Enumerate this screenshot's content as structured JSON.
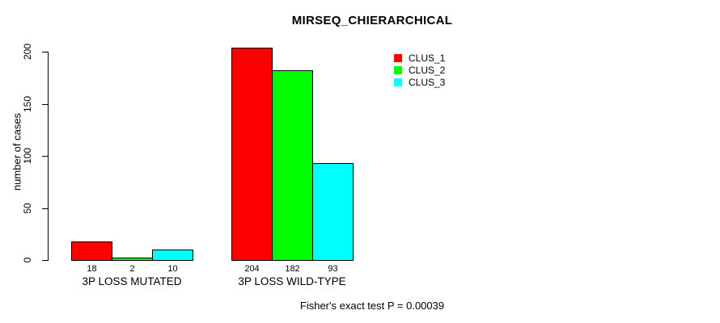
{
  "title": "MIRSEQ_CHIERARCHICAL",
  "y_axis": {
    "label": "number of cases"
  },
  "footer": "Fisher's exact test P = 0.00039",
  "legend": {
    "items": [
      {
        "label": "CLUS_1",
        "color": "#FF0000"
      },
      {
        "label": "CLUS_2",
        "color": "#00FF00"
      },
      {
        "label": "CLUS_3",
        "color": "#00FFFF"
      }
    ]
  },
  "chart_data": {
    "type": "bar",
    "title": "MIRSEQ_CHIERARCHICAL",
    "categories": [
      "3P LOSS MUTATED",
      "3P LOSS WILD-TYPE"
    ],
    "series": [
      {
        "name": "CLUS_1",
        "color": "#FF0000",
        "values": [
          18,
          204
        ]
      },
      {
        "name": "CLUS_2",
        "color": "#00FF00",
        "values": [
          2,
          182
        ]
      },
      {
        "name": "CLUS_3",
        "color": "#00FFFF",
        "values": [
          10,
          93
        ]
      }
    ],
    "bar_value_labels": [
      [
        "18",
        "2",
        "10"
      ],
      [
        "204",
        "182",
        "93"
      ]
    ],
    "xlabel": "",
    "ylabel": "number of cases",
    "ylim": [
      0,
      200
    ],
    "yticks": [
      0,
      50,
      100,
      150,
      200
    ],
    "grid": false,
    "legend_position": "top-right",
    "annotation": "Fisher's exact test P = 0.00039"
  }
}
